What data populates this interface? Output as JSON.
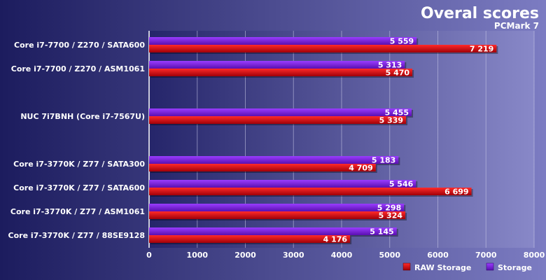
{
  "chart_data": {
    "type": "bar",
    "orientation": "horizontal",
    "title": "Overal scores",
    "subtitle": "PCMark 7",
    "categories": [
      "Core i7-7700 / Z270 / SATA600",
      "Core i7-7700 / Z270 / ASM1061",
      "NUC 7i7BNH (Core i7-7567U)",
      "Core i7-3770K / Z77 / SATA300",
      "Core i7-3770K / Z77 / SATA600",
      "Core i7-3770K / Z77 / ASM1061",
      "Core i7-3770K / Z77 / 88SE9128"
    ],
    "series": [
      {
        "name": "Storage",
        "color": "#7b1fe0",
        "values": [
          5559,
          5313,
          5455,
          5183,
          5546,
          5298,
          5145
        ],
        "labels": [
          "5 559",
          "5 313",
          "5 455",
          "5 183",
          "5 546",
          "5 298",
          "5 145"
        ]
      },
      {
        "name": "RAW Storage",
        "color": "#e0101a",
        "values": [
          7219,
          5470,
          5339,
          4709,
          6699,
          5324,
          4176
        ],
        "labels": [
          "7 219",
          "5 470",
          "5 339",
          "4 709",
          "6 699",
          "5 324",
          "4 176"
        ]
      }
    ],
    "xlim": [
      0,
      8000
    ],
    "xticks": [
      0,
      1000,
      2000,
      3000,
      4000,
      5000,
      6000,
      7000,
      8000
    ],
    "legend": [
      "RAW Storage",
      "Storage"
    ],
    "legend_position": "bottom-right",
    "grid": true
  }
}
